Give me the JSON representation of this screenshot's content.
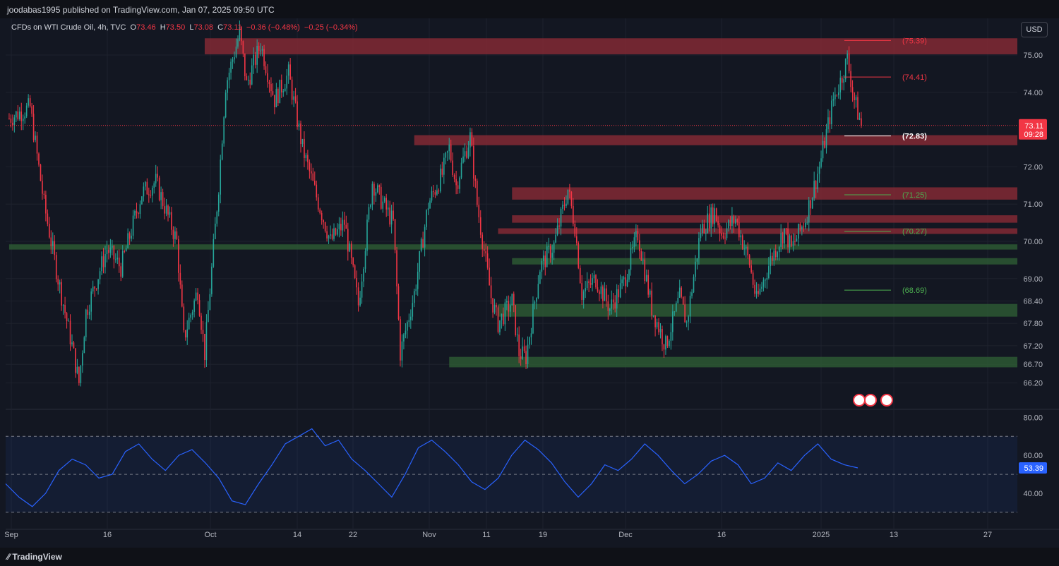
{
  "header": {
    "published": "joodabas1995 published on TradingView.com, Jan 07, 2025 09:50 UTC"
  },
  "legend": {
    "symbol": "CFDs on WTI Crude Oil, 4h, TVC",
    "open_label": "O",
    "open": "73.46",
    "high_label": "H",
    "high": "73.50",
    "low_label": "L",
    "low": "73.08",
    "close_label": "C",
    "close": "73.11",
    "change": "−0.36 (−0.48%)",
    "change2": "−0.25 (−0.34%)"
  },
  "currency_button": "USD",
  "footer": {
    "brand": "TradingView"
  },
  "colors": {
    "up": "#26a69a",
    "down": "#f23645",
    "resistance": "#8c2a36",
    "support": "#2e5e35",
    "rsi": "#2962ff"
  },
  "chart_data": [
    {
      "type": "candlestick",
      "title": "CFDs on WTI Crude Oil, 4h, TVC",
      "x_ticks": [
        "Sep",
        "16",
        "Oct",
        "14",
        "22",
        "Nov",
        "11",
        "19",
        "Dec",
        "16",
        "2025",
        "13",
        "27"
      ],
      "y_ticks": [
        "75.00",
        "74.00",
        "72.00",
        "71.00",
        "70.00",
        "69.00",
        "68.40",
        "67.80",
        "67.20",
        "66.70",
        "66.20"
      ],
      "ylim": [
        66.0,
        75.7
      ],
      "last_price": {
        "value": "73.11",
        "countdown": "09:28"
      },
      "close_path": [
        [
          0,
          73.3
        ],
        [
          3,
          73.6
        ],
        [
          5,
          71.0
        ],
        [
          7,
          69.0
        ],
        [
          9,
          67.2
        ],
        [
          10,
          66.2
        ],
        [
          11,
          68.1
        ],
        [
          14,
          69.8
        ],
        [
          16,
          69.3
        ],
        [
          19,
          71.3
        ],
        [
          21,
          71.6
        ],
        [
          24,
          70.0
        ],
        [
          25,
          67.4
        ],
        [
          27,
          68.7
        ],
        [
          28,
          67.0
        ],
        [
          30,
          71.5
        ],
        [
          31,
          74.2
        ],
        [
          33,
          75.6
        ],
        [
          34,
          74.2
        ],
        [
          36,
          75.3
        ],
        [
          38,
          73.8
        ],
        [
          40,
          74.5
        ],
        [
          42,
          72.5
        ],
        [
          44,
          71.2
        ],
        [
          46,
          70.0
        ],
        [
          48,
          70.5
        ],
        [
          50,
          68.3
        ],
        [
          52,
          71.6
        ],
        [
          53,
          71.2
        ],
        [
          55,
          70.5
        ],
        [
          56,
          67.0
        ],
        [
          58,
          68.6
        ],
        [
          60,
          71.0
        ],
        [
          62,
          71.8
        ],
        [
          63,
          72.5
        ],
        [
          64,
          71.5
        ],
        [
          65,
          72.2
        ],
        [
          66,
          72.8
        ],
        [
          67,
          71.0
        ],
        [
          69,
          68.5
        ],
        [
          70,
          67.8
        ],
        [
          72,
          68.4
        ],
        [
          73,
          67.0
        ],
        [
          74,
          66.9
        ],
        [
          76,
          69.3
        ],
        [
          78,
          69.9
        ],
        [
          80,
          71.4
        ],
        [
          81,
          70.4
        ],
        [
          82,
          68.6
        ],
        [
          84,
          69.0
        ],
        [
          86,
          68.2
        ],
        [
          88,
          68.9
        ],
        [
          90,
          70.2
        ],
        [
          92,
          68.2
        ],
        [
          94,
          67.2
        ],
        [
          96,
          68.5
        ],
        [
          97,
          67.8
        ],
        [
          99,
          70.3
        ],
        [
          101,
          70.8
        ],
        [
          102,
          70.2
        ],
        [
          104,
          70.6
        ],
        [
          106,
          69.4
        ],
        [
          107,
          68.4
        ],
        [
          109,
          69.5
        ],
        [
          111,
          70.3
        ],
        [
          112,
          69.8
        ],
        [
          114,
          70.6
        ],
        [
          116,
          72.0
        ],
        [
          118,
          73.8
        ],
        [
          119,
          74.3
        ],
        [
          120,
          74.9
        ],
        [
          121,
          73.8
        ],
        [
          122,
          73.11
        ]
      ],
      "levels": [
        {
          "label": "(75.39)",
          "value": 75.39,
          "color": "#f23645"
        },
        {
          "label": "(74.41)",
          "value": 74.41,
          "color": "#f23645"
        },
        {
          "label": "(72.83)",
          "value": 72.83,
          "color": "#ffffff"
        },
        {
          "label": "(71.25)",
          "value": 71.25,
          "color": "#4caf50"
        },
        {
          "label": "(70.27)",
          "value": 70.27,
          "color": "#4caf50"
        },
        {
          "label": "(68.69)",
          "value": 68.69,
          "color": "#4caf50"
        }
      ],
      "zones": [
        {
          "kind": "resistance",
          "from_bar": 28,
          "y1": 75.45,
          "y2": 75.02
        },
        {
          "kind": "resistance",
          "from_bar": 58,
          "y1": 72.85,
          "y2": 72.58
        },
        {
          "kind": "resistance",
          "from_bar": 72,
          "y1": 71.45,
          "y2": 71.12
        },
        {
          "kind": "resistance",
          "from_bar": 72,
          "y1": 70.7,
          "y2": 70.5
        },
        {
          "kind": "resistance",
          "from_bar": 70,
          "y1": 70.35,
          "y2": 70.2
        },
        {
          "kind": "support",
          "from_bar": 0,
          "y1": 69.92,
          "y2": 69.78
        },
        {
          "kind": "support",
          "from_bar": 72,
          "y1": 69.55,
          "y2": 69.38
        },
        {
          "kind": "support",
          "from_bar": 70,
          "y1": 68.32,
          "y2": 67.98
        },
        {
          "kind": "support",
          "from_bar": 63,
          "y1": 66.9,
          "y2": 66.62
        }
      ]
    },
    {
      "type": "line",
      "title": "RSI",
      "y_ticks": [
        "80.00",
        "60.00",
        "40.00"
      ],
      "ylim": [
        30,
        82
      ],
      "levels": [
        70,
        50,
        30
      ],
      "last_value": "53.39",
      "values": [
        45,
        38,
        33,
        40,
        52,
        58,
        55,
        48,
        50,
        62,
        66,
        58,
        52,
        60,
        63,
        56,
        48,
        36,
        34,
        45,
        55,
        66,
        70,
        74,
        65,
        68,
        58,
        52,
        45,
        38,
        50,
        64,
        68,
        62,
        55,
        46,
        42,
        48,
        60,
        68,
        63,
        56,
        46,
        38,
        45,
        55,
        52,
        58,
        66,
        60,
        52,
        45,
        50,
        57,
        60,
        55,
        45,
        48,
        56,
        52,
        60,
        66,
        58,
        55,
        53.39
      ]
    }
  ]
}
